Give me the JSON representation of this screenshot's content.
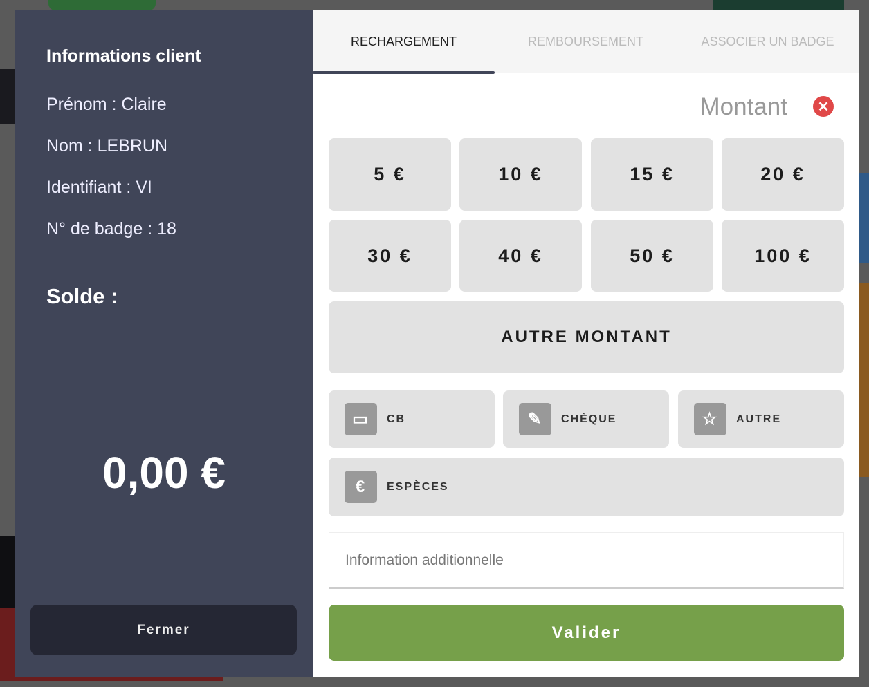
{
  "client": {
    "title": "Informations client",
    "first_name": "Prénom : Claire",
    "last_name": "Nom : LEBRUN",
    "identifier": "Identifiant : VI",
    "badge": "N° de badge : 18",
    "balance_label": "Solde :",
    "balance": "0,00 €",
    "close_label": "Fermer"
  },
  "tabs": [
    {
      "label": "RECHARGEMENT",
      "active": true
    },
    {
      "label": "REMBOURSEMENT",
      "active": false
    },
    {
      "label": "ASSOCIER UN BADGE",
      "active": false
    }
  ],
  "amount": {
    "label": "Montant",
    "presets": [
      "5 €",
      "10 €",
      "15 €",
      "20 €",
      "30 €",
      "40 €",
      "50 €",
      "100 €"
    ],
    "other_label": "AUTRE MONTANT"
  },
  "payment_methods": [
    {
      "label": "CB",
      "icon": "credit-card-icon"
    },
    {
      "label": "CHÈQUE",
      "icon": "edit-icon"
    },
    {
      "label": "AUTRE",
      "icon": "star-icon"
    },
    {
      "label": "ESPÈCES",
      "icon": "euro-icon"
    }
  ],
  "info_placeholder": "Information additionnelle",
  "submit_label": "Valider",
  "colors": {
    "panel": "#404558",
    "submit": "#76a04a",
    "close": "#e04848"
  }
}
